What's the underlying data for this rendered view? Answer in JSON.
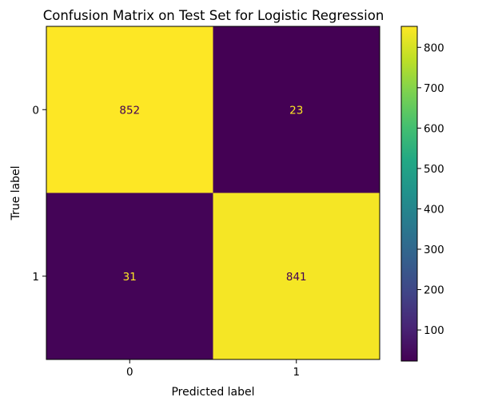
{
  "chart_data": {
    "type": "heatmap",
    "title": "Confusion Matrix on Test Set for Logistic Regression",
    "xlabel": "Predicted label",
    "ylabel": "True label",
    "x_categories": [
      "0",
      "1"
    ],
    "y_categories": [
      "0",
      "1"
    ],
    "values": [
      [
        852,
        23
      ],
      [
        31,
        841
      ]
    ],
    "colormap": "viridis",
    "colorbar": {
      "range": [
        23,
        852
      ],
      "ticks": [
        100,
        200,
        300,
        400,
        500,
        600,
        700,
        800
      ]
    },
    "colors": {
      "viridis_low": "#440154",
      "viridis_high": "#fde725",
      "text_on_dark": "#fde725",
      "text_on_light": "#440154"
    }
  }
}
